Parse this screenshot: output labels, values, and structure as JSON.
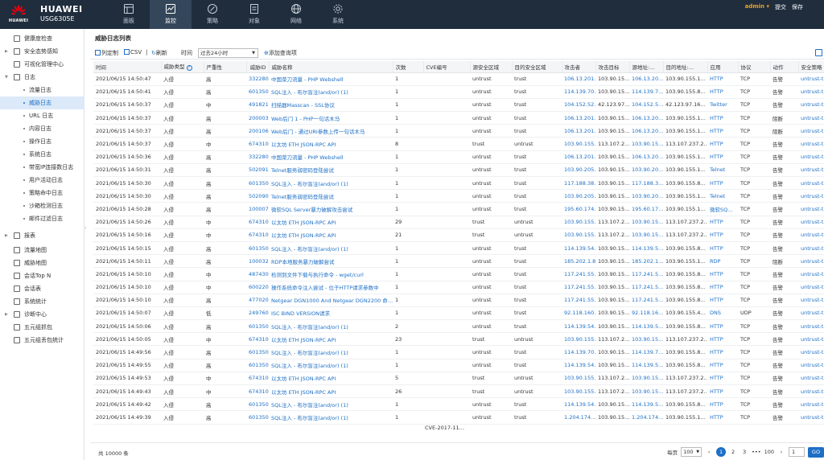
{
  "header": {
    "logo_text": "HUAWEI",
    "brand": "HUAWEI",
    "model": "USG6305E",
    "nav": [
      {
        "label": "面板",
        "icon": "dashboard-icon",
        "active": false
      },
      {
        "label": "监控",
        "icon": "monitor-icon",
        "active": true
      },
      {
        "label": "策略",
        "icon": "policy-icon",
        "active": false
      },
      {
        "label": "对象",
        "icon": "object-icon",
        "active": false
      },
      {
        "label": "网络",
        "icon": "network-icon",
        "active": false
      },
      {
        "label": "系统",
        "icon": "system-icon",
        "active": false
      }
    ],
    "user": "admin",
    "user_caret": "▾",
    "commit": "提交",
    "save": "保存"
  },
  "sidebar": {
    "items": [
      {
        "label": "健康度检查",
        "level": 1,
        "arrow": ""
      },
      {
        "label": "安全态势感知",
        "level": 1,
        "arrow": "▶"
      },
      {
        "label": "可视化管理中心",
        "level": 1,
        "arrow": ""
      },
      {
        "label": "日志",
        "level": 1,
        "arrow": "▼"
      },
      {
        "label": "流量日志",
        "level": 2
      },
      {
        "label": "威胁日志",
        "level": 2,
        "active": true
      },
      {
        "label": "URL 日志",
        "level": 2
      },
      {
        "label": "内容日志",
        "level": 2
      },
      {
        "label": "操作日志",
        "level": 2
      },
      {
        "label": "系统日志",
        "level": 2
      },
      {
        "label": "带宽IP连接数日志",
        "level": 2
      },
      {
        "label": "用户活动日志",
        "level": 2
      },
      {
        "label": "策略命中日志",
        "level": 2
      },
      {
        "label": "沙箱检测日志",
        "level": 2
      },
      {
        "label": "邮件过滤日志",
        "level": 2
      },
      {
        "label": "报表",
        "level": 1,
        "arrow": "▶"
      },
      {
        "label": "流量地图",
        "level": 1,
        "arrow": ""
      },
      {
        "label": "威胁地图",
        "level": 1,
        "arrow": ""
      },
      {
        "label": "会话Top N",
        "level": 1,
        "arrow": ""
      },
      {
        "label": "会话表",
        "level": 1,
        "arrow": ""
      },
      {
        "label": "系统统计",
        "level": 1,
        "arrow": ""
      },
      {
        "label": "诊断中心",
        "level": 1,
        "arrow": "▶"
      },
      {
        "label": "五元组抓包",
        "level": 1,
        "arrow": ""
      },
      {
        "label": "五元组丢包统计",
        "level": 1,
        "arrow": ""
      }
    ],
    "handle": "‹"
  },
  "main": {
    "title": "威胁日志列表",
    "toolbar": {
      "column_custom": "列定制",
      "csv": "CSV",
      "sep": "|",
      "refresh": "刷新",
      "time_label": "时间",
      "time_value": "过去24小时",
      "add_query": "添加查询项"
    },
    "columns": [
      "时间",
      "威胁类型",
      "严重性",
      "威胁ID",
      "威胁名称",
      "次数",
      "CVE编号",
      "源安全区域",
      "目的安全区域",
      "攻击者",
      "攻击目标",
      "源地址:…",
      "目的地址:…",
      "应用",
      "协议",
      "动作",
      "安全策略"
    ],
    "rows": [
      [
        "2021/06/15 14:50:47",
        "入侵",
        "高",
        "332280",
        "中国菜刀流量 - PHP Webshell",
        "1",
        "",
        "untrust",
        "trust",
        "106.13.201…",
        "103.90.15…",
        "106.13.20…",
        "103.90.155.1…",
        "HTTP",
        "TCP",
        "告警",
        "untrust-t"
      ],
      [
        "2021/06/15 14:50:41",
        "入侵",
        "高",
        "6013504",
        "SQL注入 - 布尔盲注(and/or) (1)",
        "1",
        "",
        "untrust",
        "trust",
        "114.139.70…",
        "103.90.15…",
        "114.139.7…",
        "103.90.155.8…",
        "HTTP",
        "TCP",
        "告警",
        "untrust-t"
      ],
      [
        "2021/06/15 14:50:37",
        "入侵",
        "中",
        "491821",
        "扫描器Masscan - SSL协议",
        "1",
        "",
        "untrust",
        "trust",
        "104.152.52…",
        "42.123.97…",
        "104.152.5…",
        "42.123.97.16…",
        "Twitter",
        "TCP",
        "告警",
        "untrust-t"
      ],
      [
        "2021/06/15 14:50:37",
        "入侵",
        "高",
        "2000037",
        "Web后门 1 - PHP一句话木马",
        "1",
        "",
        "untrust",
        "trust",
        "106.13.201…",
        "103.90.15…",
        "106.13.20…",
        "103.90.155.1…",
        "HTTP",
        "TCP",
        "阻断",
        "untrust-t"
      ],
      [
        "2021/06/15 14:50:37",
        "入侵",
        "高",
        "2001066",
        "Web后门 - 通过URI参数上传一句话木马",
        "1",
        "",
        "untrust",
        "trust",
        "106.13.201…",
        "103.90.15…",
        "106.13.20…",
        "103.90.155.1…",
        "HTTP",
        "TCP",
        "阻断",
        "untrust-t"
      ],
      [
        "2021/06/15 14:50:37",
        "入侵",
        "中",
        "674310",
        "以太坊 ETH JSON-RPC API",
        "8",
        "",
        "trust",
        "untrust",
        "103.90.155…",
        "113.107.2…",
        "103.90.15…",
        "113.107.237.2…",
        "HTTP",
        "TCP",
        "告警",
        "untrust-t"
      ],
      [
        "2021/06/15 14:50:36",
        "入侵",
        "高",
        "332280",
        "中国菜刀流量 - PHP Webshell",
        "1",
        "",
        "untrust",
        "trust",
        "106.13.201…",
        "103.90.15…",
        "106.13.20…",
        "103.90.155.1…",
        "HTTP",
        "TCP",
        "告警",
        "untrust-t"
      ],
      [
        "2021/06/15 14:50:31",
        "入侵",
        "高",
        "5020914",
        "Telnet服务弱密码登陆尝试",
        "1",
        "",
        "untrust",
        "trust",
        "103.90.205…",
        "103.90.15…",
        "103.90.20…",
        "103.90.155.1…",
        "Telnet",
        "TCP",
        "告警",
        "untrust-t"
      ],
      [
        "2021/06/15 14:50:30",
        "入侵",
        "高",
        "6013504",
        "SQL注入 - 布尔盲注(and/or) (1)",
        "1",
        "",
        "untrust",
        "trust",
        "117.188.38…",
        "103.90.15…",
        "117.188.3…",
        "103.90.155.8…",
        "HTTP",
        "TCP",
        "告警",
        "untrust-t"
      ],
      [
        "2021/06/15 14:50:30",
        "入侵",
        "高",
        "5020908",
        "Telnet服务弱密码登陆尝试",
        "1",
        "",
        "untrust",
        "trust",
        "103.90.205…",
        "103.90.15…",
        "103.90.20…",
        "103.90.155.1…",
        "Telnet",
        "TCP",
        "告警",
        "untrust-t"
      ],
      [
        "2021/06/15 14:50:28",
        "入侵",
        "高",
        "1000078",
        "微软SQL Server暴力破解攻击尝试",
        "1",
        "",
        "untrust",
        "trust",
        "195.60.174…",
        "103.90.15…",
        "195.60.17…",
        "103.90.155.1…",
        "微软SQ…",
        "TCP",
        "告警",
        "untrust-t"
      ],
      [
        "2021/06/15 14:50:26",
        "入侵",
        "中",
        "674310",
        "以太坊 ETH JSON-RPC API",
        "29",
        "",
        "trust",
        "untrust",
        "103.90.155…",
        "113.107.2…",
        "103.90.15…",
        "113.107.237.2…",
        "HTTP",
        "TCP",
        "告警",
        "untrust-t"
      ],
      [
        "2021/06/15 14:50:16",
        "入侵",
        "中",
        "674310",
        "以太坊 ETH JSON-RPC API",
        "21",
        "",
        "trust",
        "untrust",
        "103.90.155…",
        "113.107.2…",
        "103.90.15…",
        "113.107.237.2…",
        "HTTP",
        "TCP",
        "告警",
        "untrust-t"
      ],
      [
        "2021/06/15 14:50:15",
        "入侵",
        "高",
        "6013504",
        "SQL注入 - 布尔盲注(and/or) (1)",
        "1",
        "",
        "untrust",
        "trust",
        "114.139.54…",
        "103.90.15…",
        "114.139.5…",
        "103.90.155.8…",
        "HTTP",
        "TCP",
        "告警",
        "untrust-t"
      ],
      [
        "2021/06/15 14:50:11",
        "入侵",
        "高",
        "1000327",
        "RDP本地服务暴力破解尝试",
        "1",
        "",
        "untrust",
        "trust",
        "185.202.1.81",
        "103.90.15…",
        "185.202.1…",
        "103.90.155.1…",
        "RDP",
        "TCP",
        "阻断",
        "untrust-t"
      ],
      [
        "2021/06/15 14:50:10",
        "入侵",
        "中",
        "487430",
        "检测到文件下载与执行命令 - wget/curl",
        "1",
        "",
        "untrust",
        "trust",
        "117.241.55…",
        "103.90.15…",
        "117.241.5…",
        "103.90.155.8…",
        "HTTP",
        "TCP",
        "告警",
        "untrust-t"
      ],
      [
        "2021/06/15 14:50:10",
        "入侵",
        "中",
        "6002200",
        "操作系统命令注入尝试 - 位于HTTP请求参数中",
        "1",
        "",
        "untrust",
        "trust",
        "117.241.55…",
        "103.90.15…",
        "117.241.5…",
        "103.90.155.8…",
        "HTTP",
        "TCP",
        "告警",
        "untrust-t"
      ],
      [
        "2021/06/15 14:50:10",
        "入侵",
        "高",
        "477020",
        "Netgear DGN1000 And Netgear DGN2200 命…",
        "1",
        "",
        "untrust",
        "trust",
        "117.241.55…",
        "103.90.15…",
        "117.241.5…",
        "103.90.155.8…",
        "HTTP",
        "TCP",
        "告警",
        "untrust-t"
      ],
      [
        "2021/06/15 14:50:07",
        "入侵",
        "低",
        "249760",
        "ISC BIND VERSION请求",
        "1",
        "",
        "untrust",
        "trust",
        "92.118.160.5",
        "103.90.15…",
        "92.118.16…",
        "103.90.155.4…",
        "DNS",
        "UDP",
        "告警",
        "untrust-t"
      ],
      [
        "2021/06/15 14:50:06",
        "入侵",
        "高",
        "6013504",
        "SQL注入 - 布尔盲注(and/or) (1)",
        "2",
        "",
        "untrust",
        "trust",
        "114.139.54…",
        "103.90.15…",
        "114.139.5…",
        "103.90.155.8…",
        "HTTP",
        "TCP",
        "告警",
        "untrust-t"
      ],
      [
        "2021/06/15 14:50:05",
        "入侵",
        "中",
        "674310",
        "以太坊 ETH JSON-RPC API",
        "23",
        "",
        "trust",
        "untrust",
        "103.90.155…",
        "113.107.2…",
        "103.90.15…",
        "113.107.237.2…",
        "HTTP",
        "TCP",
        "告警",
        "untrust-t"
      ],
      [
        "2021/06/15 14:49:56",
        "入侵",
        "高",
        "6013504",
        "SQL注入 - 布尔盲注(and/or) (1)",
        "1",
        "",
        "untrust",
        "trust",
        "114.139.70…",
        "103.90.15…",
        "114.139.7…",
        "103.90.155.8…",
        "HTTP",
        "TCP",
        "告警",
        "untrust-t"
      ],
      [
        "2021/06/15 14:49:55",
        "入侵",
        "高",
        "6013504",
        "SQL注入 - 布尔盲注(and/or) (1)",
        "1",
        "",
        "untrust",
        "trust",
        "114.139.54…",
        "103.90.15…",
        "114.139.5…",
        "103.90.155.8…",
        "HTTP",
        "TCP",
        "告警",
        "untrust-t"
      ],
      [
        "2021/06/15 14:49:53",
        "入侵",
        "中",
        "674310",
        "以太坊 ETH JSON-RPC API",
        "5",
        "",
        "trust",
        "untrust",
        "103.90.155…",
        "113.107.2…",
        "103.90.15…",
        "113.107.237.2…",
        "HTTP",
        "TCP",
        "告警",
        "untrust-t"
      ],
      [
        "2021/06/15 14:49:43",
        "入侵",
        "中",
        "674310",
        "以太坊 ETH JSON-RPC API",
        "26",
        "",
        "trust",
        "untrust",
        "103.90.155…",
        "113.107.2…",
        "103.90.15…",
        "113.107.237.2…",
        "HTTP",
        "TCP",
        "告警",
        "untrust-t"
      ],
      [
        "2021/06/15 14:49:42",
        "入侵",
        "高",
        "6013504",
        "SQL注入 - 布尔盲注(and/or) (1)",
        "1",
        "",
        "untrust",
        "trust",
        "114.139.54…",
        "103.90.15…",
        "114.139.5…",
        "103.90.155.8…",
        "HTTP",
        "TCP",
        "告警",
        "untrust-t"
      ],
      [
        "2021/06/15 14:49:39",
        "入侵",
        "高",
        "6013504",
        "SQL注入 - 布尔盲注(and/or) (1)",
        "1",
        "",
        "untrust",
        "trust",
        "1.204.174…",
        "103.90.15…",
        "1.204.174…",
        "103.90.155.1…",
        "HTTP",
        "TCP",
        "告警",
        "untrust-t"
      ]
    ],
    "partial_row_cve": "CVE-2017-11…",
    "footer": {
      "total": "共 10000 条",
      "per_page_label": "每页",
      "per_page_value": "100",
      "prev": "‹",
      "pages": [
        "1",
        "2",
        "3",
        "•••",
        "100"
      ],
      "next": "›",
      "page_input": "1",
      "go": "GO"
    }
  },
  "colors": {
    "header_bg": "#1f2d3d",
    "accent": "#1d6fc6",
    "user": "#f0a020"
  }
}
